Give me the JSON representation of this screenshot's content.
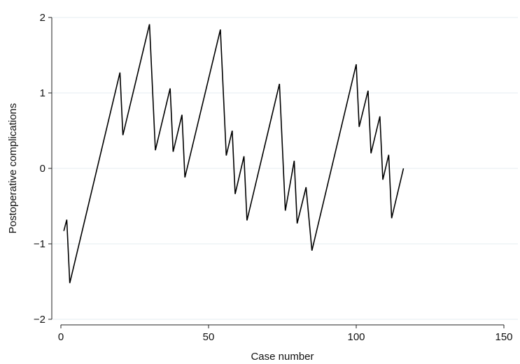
{
  "chart_data": {
    "type": "line",
    "title": "",
    "xlabel": "Case number",
    "ylabel": "Postoperative complications",
    "xlim": [
      -2,
      150
    ],
    "ylim": [
      -2.1,
      2.1
    ],
    "x_ticks": [
      0,
      50,
      100,
      150
    ],
    "y_ticks": [
      -2,
      -1,
      0,
      1,
      2
    ],
    "grid": "horizontal",
    "legend": "none",
    "line_color": "#000000",
    "grid_color": "#e6eef2",
    "series": [
      {
        "x": [
          1,
          2,
          3,
          20,
          21,
          30,
          32,
          37,
          38,
          41,
          42,
          54,
          56,
          58,
          59,
          62,
          63,
          74,
          76,
          79,
          80,
          83,
          85,
          100,
          101,
          104,
          105,
          108,
          109,
          111,
          112,
          116
        ],
        "y": [
          -0.83,
          -0.68,
          -1.52,
          1.27,
          0.44,
          1.91,
          0.24,
          1.06,
          0.22,
          0.71,
          -0.12,
          1.84,
          0.17,
          0.5,
          -0.34,
          0.16,
          -0.69,
          1.12,
          -0.56,
          0.1,
          -0.73,
          -0.25,
          -1.09,
          1.38,
          0.55,
          1.03,
          0.2,
          0.69,
          -0.15,
          0.18,
          -0.66,
          0.0
        ]
      }
    ]
  }
}
